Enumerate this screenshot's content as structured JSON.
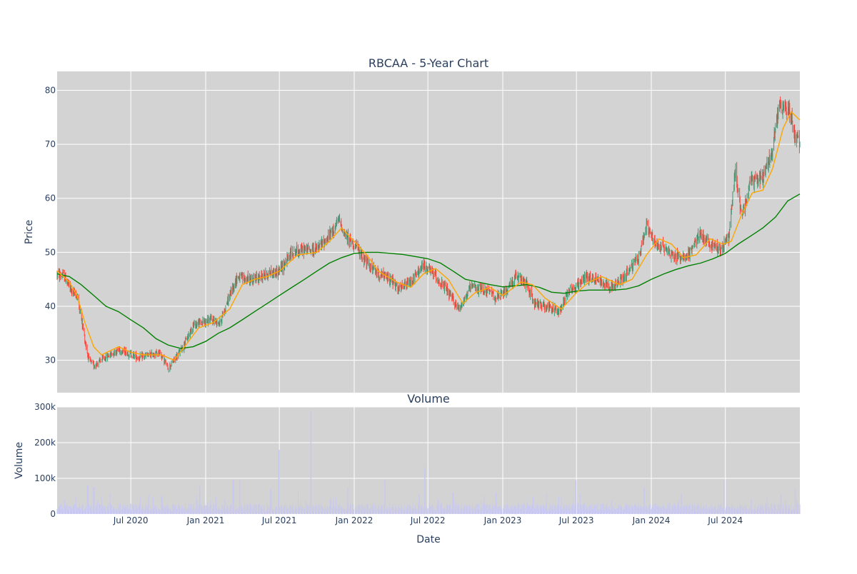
{
  "chart_data": [
    {
      "type": "candlestick",
      "title": "RBCAA - 5-Year Chart",
      "xlabel": "",
      "ylabel": "Price",
      "ylim": [
        24,
        83.5
      ],
      "xlim": [
        "2020-01-02",
        "2024-12-31"
      ],
      "grid": true,
      "legend": "none",
      "y_ticks": [
        30,
        40,
        50,
        60,
        70,
        80
      ],
      "colors": {
        "background": "#d3d3d3",
        "grid": "#ffffff",
        "increasing": "#3d9970",
        "decreasing": "#ff4136",
        "ma_short": "#ffa500",
        "ma_long": "#008000"
      },
      "close_path": [
        [
          "2020-01-02",
          46
        ],
        [
          "2020-01-20",
          45.5
        ],
        [
          "2020-02-05",
          43
        ],
        [
          "2020-02-20",
          42
        ],
        [
          "2020-03-01",
          38
        ],
        [
          "2020-03-12",
          33
        ],
        [
          "2020-03-20",
          30
        ],
        [
          "2020-04-01",
          29
        ],
        [
          "2020-04-20",
          30
        ],
        [
          "2020-05-10",
          31
        ],
        [
          "2020-06-01",
          32
        ],
        [
          "2020-06-20",
          31.5
        ],
        [
          "2020-07-20",
          30.5
        ],
        [
          "2020-08-20",
          31
        ],
        [
          "2020-09-10",
          31.5
        ],
        [
          "2020-10-01",
          28.5
        ],
        [
          "2020-10-20",
          30.5
        ],
        [
          "2020-11-10",
          33
        ],
        [
          "2020-12-01",
          36.5
        ],
        [
          "2020-12-20",
          37
        ],
        [
          "2021-01-15",
          37.5
        ],
        [
          "2021-02-05",
          37
        ],
        [
          "2021-03-01",
          42
        ],
        [
          "2021-03-20",
          45.5
        ],
        [
          "2021-04-10",
          45
        ],
        [
          "2021-05-01",
          45
        ],
        [
          "2021-06-01",
          46
        ],
        [
          "2021-07-01",
          46.5
        ],
        [
          "2021-08-01",
          50
        ],
        [
          "2021-09-01",
          50.5
        ],
        [
          "2021-10-01",
          50.5
        ],
        [
          "2021-11-01",
          53
        ],
        [
          "2021-11-25",
          56
        ],
        [
          "2021-12-10",
          53
        ],
        [
          "2022-01-01",
          51.5
        ],
        [
          "2022-02-01",
          48
        ],
        [
          "2022-03-01",
          46
        ],
        [
          "2022-04-01",
          45
        ],
        [
          "2022-04-20",
          43
        ],
        [
          "2022-05-20",
          44.5
        ],
        [
          "2022-06-20",
          47.5
        ],
        [
          "2022-07-15",
          46
        ],
        [
          "2022-08-15",
          43
        ],
        [
          "2022-09-15",
          39.5
        ],
        [
          "2022-10-15",
          43.5
        ],
        [
          "2022-11-20",
          43
        ],
        [
          "2022-12-20",
          41.5
        ],
        [
          "2023-01-10",
          43
        ],
        [
          "2023-02-01",
          45.5
        ],
        [
          "2023-03-01",
          44
        ],
        [
          "2023-03-20",
          40.5
        ],
        [
          "2023-04-20",
          40
        ],
        [
          "2023-05-20",
          39
        ],
        [
          "2023-06-10",
          43
        ],
        [
          "2023-07-01",
          43.5
        ],
        [
          "2023-07-20",
          45.5
        ],
        [
          "2023-08-20",
          45
        ],
        [
          "2023-10-01",
          43.5
        ],
        [
          "2023-11-01",
          46
        ],
        [
          "2023-12-01",
          49
        ],
        [
          "2023-12-20",
          55
        ],
        [
          "2024-01-10",
          51.5
        ],
        [
          "2024-02-01",
          51
        ],
        [
          "2024-03-01",
          49
        ],
        [
          "2024-04-01",
          49.5
        ],
        [
          "2024-05-01",
          53.5
        ],
        [
          "2024-05-20",
          51.5
        ],
        [
          "2024-06-20",
          50.5
        ],
        [
          "2024-07-10",
          53
        ],
        [
          "2024-07-25",
          65
        ],
        [
          "2024-08-10",
          57
        ],
        [
          "2024-09-01",
          63
        ],
        [
          "2024-10-01",
          64
        ],
        [
          "2024-10-20",
          67.5
        ],
        [
          "2024-11-10",
          77
        ],
        [
          "2024-12-05",
          76.5
        ],
        [
          "2024-12-20",
          71.5
        ],
        [
          "2024-12-31",
          70
        ]
      ],
      "ma_short": [
        [
          "2020-01-02",
          46.5
        ],
        [
          "2020-02-01",
          44.5
        ],
        [
          "2020-02-20",
          42
        ],
        [
          "2020-03-10",
          37
        ],
        [
          "2020-04-01",
          32.5
        ],
        [
          "2020-04-20",
          31
        ],
        [
          "2020-06-01",
          32.5
        ],
        [
          "2020-07-01",
          31.5
        ],
        [
          "2020-08-01",
          31
        ],
        [
          "2020-09-15",
          31
        ],
        [
          "2020-10-15",
          30
        ],
        [
          "2020-11-15",
          33
        ],
        [
          "2020-12-15",
          36
        ],
        [
          "2021-01-20",
          37
        ],
        [
          "2021-03-01",
          39.5
        ],
        [
          "2021-04-01",
          44
        ],
        [
          "2021-05-01",
          45
        ],
        [
          "2021-06-01",
          45.5
        ],
        [
          "2021-07-01",
          46.5
        ],
        [
          "2021-08-15",
          49.5
        ],
        [
          "2021-10-01",
          50
        ],
        [
          "2021-11-01",
          52
        ],
        [
          "2021-12-01",
          54.5
        ],
        [
          "2022-01-01",
          52
        ],
        [
          "2022-02-01",
          49.5
        ],
        [
          "2022-03-01",
          46.5
        ],
        [
          "2022-04-15",
          44.5
        ],
        [
          "2022-05-20",
          43.5
        ],
        [
          "2022-06-20",
          46
        ],
        [
          "2022-07-20",
          47
        ],
        [
          "2022-08-20",
          45
        ],
        [
          "2022-09-25",
          40.5
        ],
        [
          "2022-10-25",
          42.5
        ],
        [
          "2022-12-01",
          43.5
        ],
        [
          "2023-01-01",
          42
        ],
        [
          "2023-02-15",
          44.5
        ],
        [
          "2023-03-15",
          44
        ],
        [
          "2023-04-15",
          41.5
        ],
        [
          "2023-05-25",
          39.5
        ],
        [
          "2023-07-01",
          42.5
        ],
        [
          "2023-08-01",
          44.5
        ],
        [
          "2023-09-01",
          45.5
        ],
        [
          "2023-10-15",
          44
        ],
        [
          "2023-11-15",
          45
        ],
        [
          "2023-12-20",
          49.5
        ],
        [
          "2024-01-20",
          52.5
        ],
        [
          "2024-02-20",
          51.5
        ],
        [
          "2024-03-20",
          49
        ],
        [
          "2024-04-20",
          49.5
        ],
        [
          "2024-05-25",
          52.5
        ],
        [
          "2024-06-25",
          51.5
        ],
        [
          "2024-07-15",
          52
        ],
        [
          "2024-08-10",
          57
        ],
        [
          "2024-09-05",
          61
        ],
        [
          "2024-10-01",
          61.5
        ],
        [
          "2024-10-25",
          65.5
        ],
        [
          "2024-11-20",
          73
        ],
        [
          "2024-12-10",
          76
        ],
        [
          "2024-12-31",
          74.5
        ]
      ],
      "ma_long": [
        [
          "2020-01-02",
          46
        ],
        [
          "2020-02-01",
          45.5
        ],
        [
          "2020-03-01",
          44
        ],
        [
          "2020-04-01",
          42
        ],
        [
          "2020-05-01",
          40
        ],
        [
          "2020-06-01",
          39
        ],
        [
          "2020-07-01",
          37.5
        ],
        [
          "2020-08-01",
          36
        ],
        [
          "2020-09-01",
          34
        ],
        [
          "2020-10-01",
          32.8
        ],
        [
          "2020-11-01",
          32.2
        ],
        [
          "2020-12-01",
          32.5
        ],
        [
          "2021-01-01",
          33.5
        ],
        [
          "2021-02-01",
          35
        ],
        [
          "2021-03-01",
          36
        ],
        [
          "2021-04-01",
          37.5
        ],
        [
          "2021-05-01",
          39
        ],
        [
          "2021-06-01",
          40.5
        ],
        [
          "2021-07-01",
          42
        ],
        [
          "2021-08-01",
          43.5
        ],
        [
          "2021-09-01",
          45
        ],
        [
          "2021-10-01",
          46.5
        ],
        [
          "2021-11-01",
          48
        ],
        [
          "2021-12-01",
          49
        ],
        [
          "2022-01-01",
          49.8
        ],
        [
          "2022-02-01",
          50
        ],
        [
          "2022-03-01",
          50
        ],
        [
          "2022-04-01",
          49.8
        ],
        [
          "2022-05-01",
          49.6
        ],
        [
          "2022-06-01",
          49.2
        ],
        [
          "2022-07-01",
          48.8
        ],
        [
          "2022-08-01",
          48
        ],
        [
          "2022-09-01",
          46.5
        ],
        [
          "2022-10-01",
          45
        ],
        [
          "2022-11-01",
          44.5
        ],
        [
          "2022-12-01",
          44
        ],
        [
          "2023-01-01",
          43.6
        ],
        [
          "2023-02-01",
          43.8
        ],
        [
          "2023-03-01",
          44
        ],
        [
          "2023-04-01",
          43.5
        ],
        [
          "2023-05-01",
          42.6
        ],
        [
          "2023-06-01",
          42.4
        ],
        [
          "2023-07-01",
          42.8
        ],
        [
          "2023-08-01",
          43
        ],
        [
          "2023-09-01",
          43
        ],
        [
          "2023-10-01",
          43
        ],
        [
          "2023-11-01",
          43.2
        ],
        [
          "2023-12-01",
          43.8
        ],
        [
          "2024-01-01",
          45
        ],
        [
          "2024-02-01",
          46
        ],
        [
          "2024-03-01",
          46.8
        ],
        [
          "2024-04-01",
          47.5
        ],
        [
          "2024-05-01",
          48
        ],
        [
          "2024-06-01",
          48.8
        ],
        [
          "2024-07-01",
          49.8
        ],
        [
          "2024-08-01",
          51.5
        ],
        [
          "2024-09-01",
          53
        ],
        [
          "2024-10-01",
          54.5
        ],
        [
          "2024-11-01",
          56.5
        ],
        [
          "2024-12-01",
          59.5
        ],
        [
          "2024-12-31",
          60.8
        ]
      ]
    },
    {
      "type": "bar",
      "title": "Volume",
      "xlabel": "Date",
      "ylabel": "Volume",
      "ylim": [
        0,
        300000
      ],
      "xlim": [
        "2020-01-02",
        "2024-12-31"
      ],
      "grid": true,
      "y_ticks": [
        {
          "value": 0,
          "label": "0"
        },
        {
          "value": 100000,
          "label": "100k"
        },
        {
          "value": 200000,
          "label": "200k"
        },
        {
          "value": 300000,
          "label": "300k"
        }
      ],
      "x_ticks": [
        {
          "date": "2020-07-01",
          "label": "Jul 2020"
        },
        {
          "date": "2021-01-01",
          "label": "Jan 2021"
        },
        {
          "date": "2021-07-01",
          "label": "Jul 2021"
        },
        {
          "date": "2022-01-01",
          "label": "Jan 2022"
        },
        {
          "date": "2022-07-01",
          "label": "Jul 2022"
        },
        {
          "date": "2023-01-01",
          "label": "Jan 2023"
        },
        {
          "date": "2023-07-01",
          "label": "Jul 2023"
        },
        {
          "date": "2024-01-01",
          "label": "Jan 2024"
        },
        {
          "date": "2024-07-01",
          "label": "Jul 2024"
        }
      ],
      "colors": {
        "bar": "#c8c8f0"
      },
      "peaks": [
        [
          "2020-03-17",
          80000
        ],
        [
          "2020-04-01",
          75000
        ],
        [
          "2020-09-15",
          50000
        ],
        [
          "2020-12-18",
          80000
        ],
        [
          "2021-03-10",
          95000
        ],
        [
          "2021-03-26",
          95000
        ],
        [
          "2021-06-10",
          70000
        ],
        [
          "2021-06-30",
          180000
        ],
        [
          "2021-08-15",
          65000
        ],
        [
          "2021-09-17",
          290000
        ],
        [
          "2021-12-17",
          75000
        ],
        [
          "2022-03-18",
          95000
        ],
        [
          "2022-06-24",
          130000
        ],
        [
          "2022-06-10",
          55000
        ],
        [
          "2022-09-01",
          60000
        ],
        [
          "2022-12-16",
          60000
        ],
        [
          "2023-03-17",
          50000
        ],
        [
          "2023-05-20",
          50000
        ],
        [
          "2023-06-30",
          95000
        ],
        [
          "2023-12-15",
          75000
        ],
        [
          "2024-03-15",
          55000
        ],
        [
          "2024-06-28",
          95000
        ],
        [
          "2024-12-20",
          70000
        ],
        [
          "2024-11-15",
          55000
        ]
      ]
    }
  ]
}
